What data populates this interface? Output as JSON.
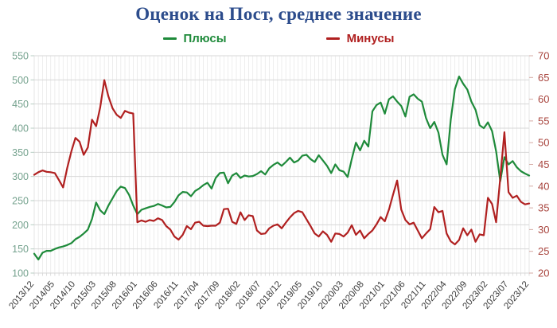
{
  "title": "Оценок на Пост, среднее значение",
  "title_color": "#2c4c8c",
  "legend": [
    {
      "label": "Плюсы",
      "color": "#1e8a3a"
    },
    {
      "label": "Минусы",
      "color": "#b02020"
    }
  ],
  "chart_data": {
    "type": "line",
    "title": "Оценок на Пост, среднее значение",
    "xlabel": "",
    "ylabel_left": "",
    "ylabel_right": "",
    "grid": true,
    "legend_position": "top",
    "left_axis": {
      "min": 100,
      "max": 550,
      "step": 50,
      "label_color": "#75a28e"
    },
    "right_axis": {
      "min": 20,
      "max": 70,
      "step": 5,
      "label_color": "#a8453e"
    },
    "x_tick_every": 5,
    "x_tick_labels": [
      "2013/12",
      "2014/05",
      "2014/10",
      "2015/03",
      "2015/08",
      "2016/01",
      "2016/06",
      "2016/11",
      "2017/04",
      "2017/09",
      "2018/02",
      "2018/07",
      "2018/12",
      "2019/05",
      "2019/10",
      "2020/03",
      "2020/08",
      "2021/01",
      "2021/06",
      "2021/11",
      "2022/04",
      "2022/09",
      "2023/02",
      "2023/07",
      "2023/12"
    ],
    "series": [
      {
        "name": "Плюсы",
        "axis": "left",
        "color": "#1e8a3a",
        "values": [
          140,
          128,
          142,
          146,
          146,
          150,
          153,
          155,
          158,
          162,
          170,
          175,
          182,
          190,
          212,
          246,
          230,
          222,
          240,
          255,
          270,
          279,
          276,
          262,
          240,
          222,
          231,
          234,
          237,
          239,
          243,
          240,
          236,
          237,
          247,
          261,
          268,
          267,
          259,
          270,
          275,
          282,
          287,
          275,
          297,
          307,
          308,
          286,
          302,
          307,
          297,
          302,
          300,
          301,
          305,
          311,
          304,
          317,
          324,
          329,
          322,
          330,
          339,
          329,
          333,
          343,
          345,
          336,
          330,
          344,
          333,
          322,
          307,
          325,
          313,
          310,
          299,
          336,
          370,
          354,
          374,
          362,
          435,
          448,
          453,
          430,
          460,
          466,
          455,
          446,
          424,
          465,
          470,
          461,
          455,
          421,
          400,
          413,
          391,
          345,
          325,
          418,
          481,
          507,
          492,
          480,
          455,
          438,
          406,
          400,
          412,
          394,
          352,
          290,
          340,
          325,
          332,
          319,
          311,
          306,
          302
        ]
      },
      {
        "name": "Минусы",
        "axis": "right",
        "color": "#b02020",
        "values": [
          42.6,
          43.2,
          43.6,
          43.3,
          43.2,
          43.0,
          41.4,
          39.7,
          44.2,
          48.0,
          51.1,
          50.2,
          47.2,
          48.9,
          55.3,
          53.8,
          58.1,
          64.4,
          60.6,
          57.9,
          56.4,
          55.7,
          57.3,
          56.9,
          56.7,
          31.7,
          32.1,
          31.8,
          32.2,
          32.0,
          32.6,
          32.2,
          30.8,
          30.0,
          28.4,
          27.7,
          28.8,
          30.8,
          30.1,
          31.6,
          31.8,
          30.9,
          30.8,
          30.9,
          30.9,
          31.6,
          34.7,
          34.8,
          31.8,
          31.3,
          34.0,
          32.2,
          33.3,
          33.1,
          29.8,
          29.0,
          29.1,
          30.3,
          30.9,
          31.2,
          30.3,
          31.6,
          32.8,
          33.8,
          34.3,
          34.0,
          32.4,
          30.8,
          29.1,
          28.4,
          29.6,
          28.8,
          27.2,
          29.1,
          29.0,
          28.4,
          29.3,
          31.0,
          28.8,
          29.8,
          28.0,
          29.0,
          29.8,
          31.2,
          32.9,
          31.9,
          34.6,
          38.0,
          41.3,
          34.6,
          32.2,
          31.2,
          31.6,
          29.8,
          28.0,
          29.1,
          30.1,
          35.2,
          34.0,
          34.3,
          29.1,
          27.3,
          26.6,
          27.6,
          30.3,
          28.7,
          30.0,
          27.2,
          28.9,
          28.7,
          37.3,
          35.9,
          31.7,
          41.9,
          52.4,
          38.6,
          37.3,
          37.8,
          36.4,
          35.8,
          36.0
        ]
      }
    ],
    "style": {
      "h_grid_color": "#d7d7d7",
      "v_grid_color": "#e6e6e6",
      "border_color": "#c9cfc9",
      "x_label_color": "#3a3a3a",
      "line_width": 2.2
    }
  }
}
